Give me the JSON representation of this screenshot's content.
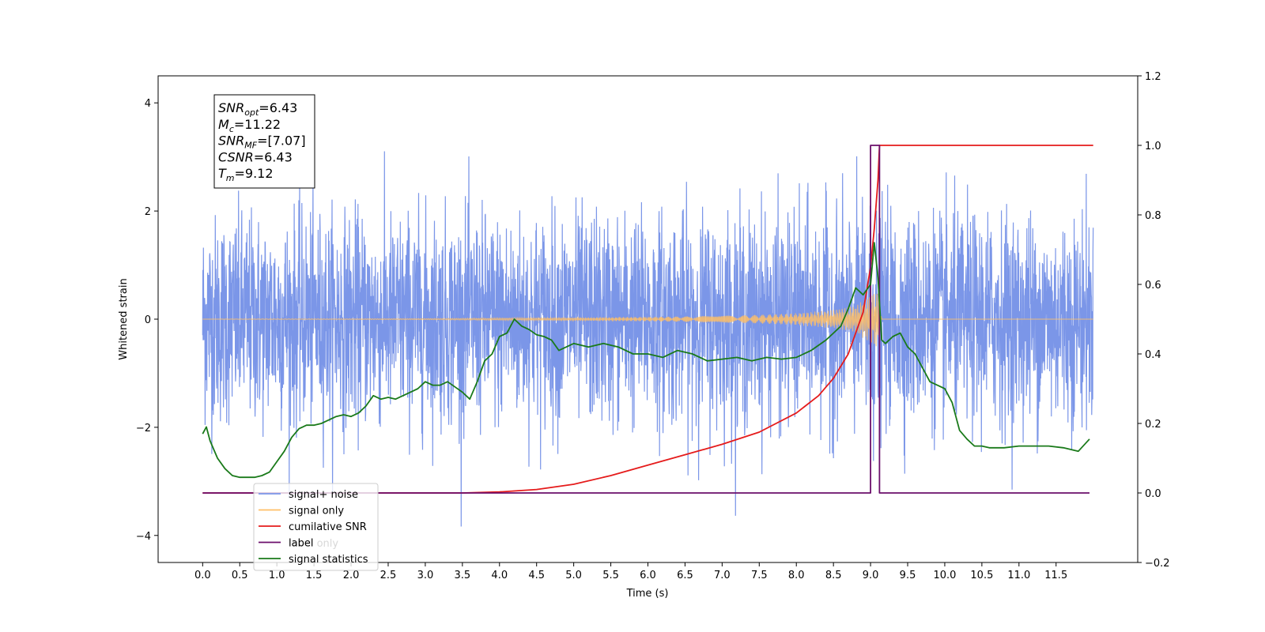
{
  "chart_data": {
    "type": "line",
    "title": "",
    "xlabel": "Time (s)",
    "ylabel": "Whitened strain",
    "ylabel_right": "",
    "xlim": [
      -0.6,
      12.6
    ],
    "ylim": [
      -4.5,
      4.5
    ],
    "ylim_right": [
      -0.2,
      1.2
    ],
    "x_ticks": [
      0.0,
      0.5,
      1.0,
      1.5,
      2.0,
      2.5,
      3.0,
      3.5,
      4.0,
      4.5,
      5.0,
      5.5,
      6.0,
      6.5,
      7.0,
      7.5,
      8.0,
      8.5,
      9.0,
      9.5,
      10.0,
      10.5,
      11.0,
      11.5
    ],
    "x_tick_labels": [
      "0.0",
      "0.5",
      "1.0",
      "1.5",
      "2.0",
      "2.5",
      "3.0",
      "3.5",
      "4.0",
      "4.5",
      "5.0",
      "5.5",
      "6.0",
      "6.5",
      "7.0",
      "7.5",
      "8.0",
      "8.5",
      "9.0",
      "9.5",
      "10.0",
      "10.5",
      "11.0",
      "11.5"
    ],
    "y_ticks": [
      -4,
      -2,
      0,
      2,
      4
    ],
    "y_tick_labels": [
      "−4",
      "−2",
      "0",
      "2",
      "4"
    ],
    "y_ticks_right": [
      -0.2,
      0.0,
      0.2,
      0.4,
      0.6,
      0.8,
      1.0,
      1.2
    ],
    "y_tick_labels_right": [
      "−0.2",
      "0.0",
      "0.2",
      "0.4",
      "0.6",
      "0.8",
      "1.0",
      "1.2"
    ],
    "grid": false,
    "legend_position": "bottom-left",
    "legend": [
      {
        "label": "signal+ noise",
        "color": "#7b96e8"
      },
      {
        "label": "signal only",
        "color": "#ffbf66"
      },
      {
        "label": "cumilative SNR",
        "color": "#e51b1b"
      },
      {
        "label": "label",
        "color": "#6b0f6b"
      },
      {
        "label": "signal statistics",
        "color": "#1a7a1a"
      }
    ],
    "hidden_legend_text": "label only",
    "annotation": {
      "lines": [
        {
          "base": "SNR",
          "sub": "opt",
          "value": "=6.43"
        },
        {
          "base": "M",
          "sub": "c",
          "value": "=11.22"
        },
        {
          "base": "SNR",
          "sub": "MF",
          "value": "=[7.07]"
        },
        {
          "base": "CSNR",
          "sub": "",
          "value": "=6.43"
        },
        {
          "base": "T",
          "sub": "m",
          "value": "=9.12"
        }
      ]
    },
    "series": [
      {
        "name": "signal+ noise",
        "axis": "left",
        "color": "#7b96e8",
        "x_range": [
          0.0,
          12.0
        ],
        "envelope_typical": [
          -1.7,
          1.7
        ],
        "peak_extremes": [
          -4.1,
          4.1
        ]
      },
      {
        "name": "signal only",
        "axis": "left",
        "color": "#ffbf66",
        "x": [
          0.0,
          3.0,
          5.0,
          6.0,
          7.0,
          7.5,
          8.0,
          8.5,
          8.8,
          9.0,
          9.1,
          9.15,
          12.0
        ],
        "amplitude": [
          0.0,
          0.01,
          0.03,
          0.04,
          0.06,
          0.08,
          0.11,
          0.17,
          0.25,
          0.45,
          0.55,
          0.0,
          0.0
        ]
      },
      {
        "name": "cumilative SNR",
        "axis": "right",
        "color": "#e51b1b",
        "x": [
          0.0,
          3.5,
          4.0,
          4.5,
          5.0,
          5.5,
          6.0,
          6.5,
          7.0,
          7.5,
          8.0,
          8.3,
          8.5,
          8.7,
          8.9,
          9.0,
          9.05,
          9.1,
          9.12,
          12.0
        ],
        "values": [
          0.0,
          0.0,
          0.003,
          0.01,
          0.025,
          0.05,
          0.08,
          0.11,
          0.14,
          0.175,
          0.23,
          0.28,
          0.33,
          0.4,
          0.52,
          0.65,
          0.76,
          0.9,
          1.0,
          1.0
        ]
      },
      {
        "name": "label",
        "axis": "right",
        "color": "#6b0f6b",
        "x": [
          0.0,
          9.0,
          9.0,
          9.12,
          9.12,
          11.95
        ],
        "values": [
          0.0,
          0.0,
          1.0,
          1.0,
          0.0,
          0.0
        ]
      },
      {
        "name": "signal statistics",
        "axis": "right",
        "color": "#1a7a1a",
        "x": [
          0.0,
          0.05,
          0.1,
          0.2,
          0.3,
          0.4,
          0.5,
          0.6,
          0.7,
          0.8,
          0.9,
          1.0,
          1.1,
          1.2,
          1.3,
          1.4,
          1.5,
          1.6,
          1.7,
          1.8,
          1.9,
          2.0,
          2.1,
          2.2,
          2.3,
          2.4,
          2.5,
          2.6,
          2.7,
          2.8,
          2.9,
          3.0,
          3.1,
          3.2,
          3.3,
          3.4,
          3.5,
          3.6,
          3.7,
          3.8,
          3.9,
          4.0,
          4.1,
          4.2,
          4.3,
          4.4,
          4.5,
          4.6,
          4.7,
          4.8,
          4.9,
          5.0,
          5.2,
          5.4,
          5.6,
          5.8,
          6.0,
          6.2,
          6.4,
          6.6,
          6.8,
          7.0,
          7.2,
          7.4,
          7.6,
          7.8,
          8.0,
          8.2,
          8.4,
          8.5,
          8.6,
          8.7,
          8.8,
          8.9,
          9.0,
          9.05,
          9.1,
          9.15,
          9.2,
          9.3,
          9.4,
          9.5,
          9.6,
          9.7,
          9.8,
          9.9,
          10.0,
          10.1,
          10.2,
          10.3,
          10.4,
          10.5,
          10.6,
          10.8,
          11.0,
          11.2,
          11.4,
          11.6,
          11.8,
          11.95
        ],
        "values": [
          0.17,
          0.19,
          0.15,
          0.1,
          0.07,
          0.05,
          0.045,
          0.045,
          0.045,
          0.05,
          0.06,
          0.09,
          0.12,
          0.16,
          0.185,
          0.195,
          0.195,
          0.2,
          0.21,
          0.22,
          0.225,
          0.22,
          0.23,
          0.25,
          0.28,
          0.27,
          0.275,
          0.27,
          0.28,
          0.29,
          0.3,
          0.32,
          0.31,
          0.31,
          0.32,
          0.305,
          0.29,
          0.27,
          0.32,
          0.38,
          0.4,
          0.45,
          0.46,
          0.5,
          0.48,
          0.47,
          0.455,
          0.45,
          0.44,
          0.41,
          0.42,
          0.43,
          0.42,
          0.43,
          0.42,
          0.4,
          0.4,
          0.39,
          0.41,
          0.4,
          0.38,
          0.385,
          0.39,
          0.38,
          0.39,
          0.385,
          0.39,
          0.41,
          0.44,
          0.46,
          0.48,
          0.53,
          0.59,
          0.57,
          0.6,
          0.72,
          0.62,
          0.44,
          0.43,
          0.45,
          0.46,
          0.42,
          0.4,
          0.36,
          0.32,
          0.31,
          0.3,
          0.26,
          0.18,
          0.155,
          0.135,
          0.135,
          0.13,
          0.13,
          0.135,
          0.135,
          0.135,
          0.13,
          0.12,
          0.155
        ]
      }
    ]
  }
}
